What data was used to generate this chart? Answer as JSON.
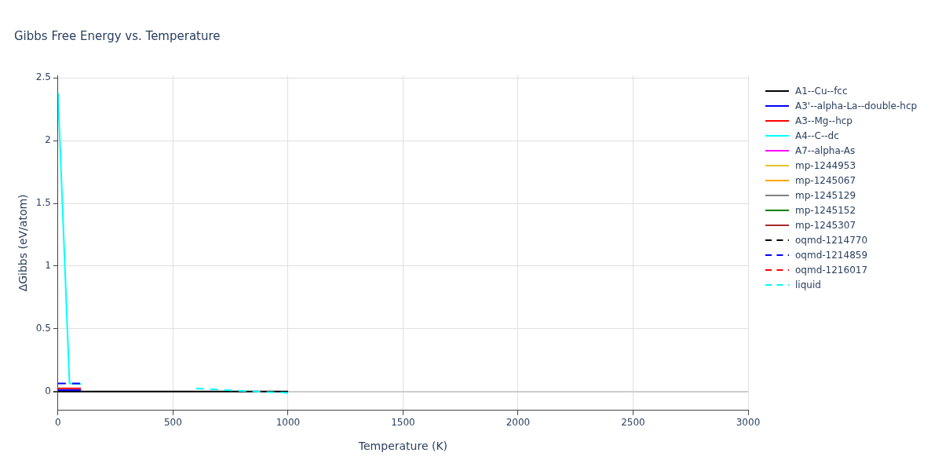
{
  "chart_data": {
    "type": "line",
    "title": "Gibbs Free Energy vs. Temperature",
    "xlabel": "Temperature (K)",
    "ylabel": "ΔGibbs (eV/atom)",
    "xlim": [
      0,
      3000
    ],
    "xticks": [
      0,
      500,
      1000,
      1500,
      2000,
      2500,
      3000
    ],
    "ylim": [
      -0.15,
      2.52
    ],
    "yticks": [
      0,
      0.5,
      1,
      1.5,
      2,
      2.5
    ],
    "grid": true,
    "legend": "right",
    "marker": "none",
    "series": [
      {
        "name": "A1--Cu--fcc",
        "color": "#000000",
        "x": [
          0,
          1000
        ],
        "values": [
          0,
          0
        ]
      },
      {
        "name": "A3'--alpha-La--double-hcp",
        "color": "#0000ff",
        "x": [
          0,
          100
        ],
        "values": [
          0.012,
          0.012
        ]
      },
      {
        "name": "A3--Mg--hcp",
        "color": "#ff0000",
        "x": [
          0,
          100
        ],
        "values": [
          0.025,
          0.025
        ]
      },
      {
        "name": "A4--C--dc",
        "color": "#00ffff",
        "x": [
          0,
          50,
          100
        ],
        "values": [
          2.38,
          0.065,
          0.06
        ]
      },
      {
        "name": "A7--alpha-As",
        "color": "#ff00ff"
      },
      {
        "name": "mp-1244953",
        "color": "#e6c229"
      },
      {
        "name": "mp-1245067",
        "color": "#ffa500"
      },
      {
        "name": "mp-1245129",
        "color": "#808080"
      },
      {
        "name": "mp-1245152",
        "color": "#008000"
      },
      {
        "name": "mp-1245307",
        "color": "#a52a2a"
      },
      {
        "name": "oqmd-1214770",
        "color": "#000000",
        "line_style": "dashed"
      },
      {
        "name": "oqmd-1214859",
        "color": "#0000ff",
        "line_style": "dashed",
        "x": [
          0,
          100
        ],
        "values": [
          0.065,
          0.065
        ]
      },
      {
        "name": "oqmd-1216017",
        "color": "#ff0000",
        "line_style": "dashed"
      },
      {
        "name": "liquid",
        "color": "#00ffff",
        "line_style": "dashed",
        "x": [
          600,
          700,
          800,
          900,
          1000
        ],
        "values": [
          0.025,
          0.015,
          0.005,
          -0.003,
          -0.01
        ]
      }
    ]
  }
}
